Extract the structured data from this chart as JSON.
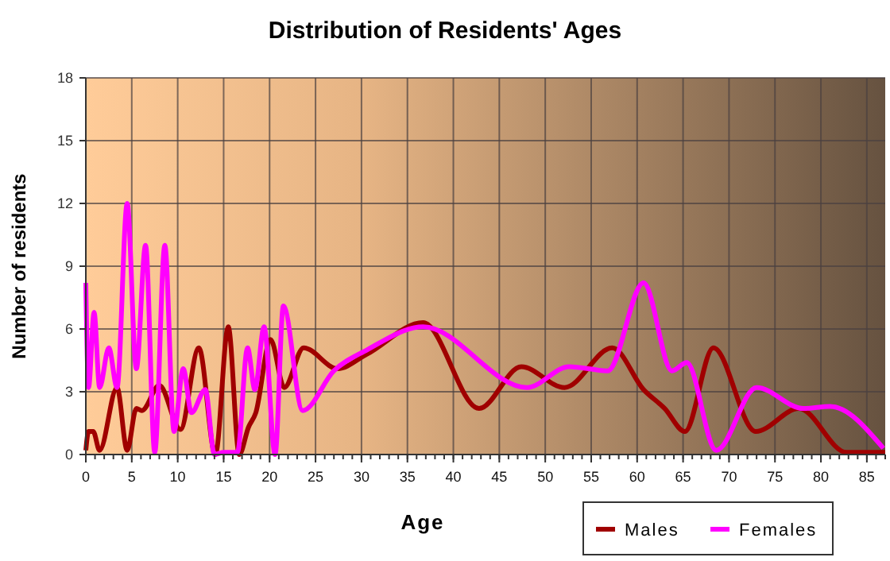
{
  "chart_data": {
    "type": "line",
    "title": "Distribution of Residents' Ages",
    "xlabel": "Age",
    "ylabel": "Number of residents",
    "xlim": [
      0,
      87
    ],
    "xticks": [
      0,
      5,
      10,
      15,
      20,
      25,
      30,
      35,
      40,
      45,
      50,
      55,
      60,
      65,
      70,
      75,
      80,
      85
    ],
    "ylim": [
      0,
      18
    ],
    "yticks": [
      0,
      3,
      6,
      9,
      12,
      15,
      18
    ],
    "grid": true,
    "legend": "bottom right",
    "marker": "none",
    "line_style": "solid",
    "series": [
      {
        "name": "Males",
        "color": "#a00000",
        "x": [
          0,
          0.3,
          0.8,
          1.5,
          3.4,
          4.5,
          5.5,
          6.1,
          8,
          10.3,
          12.3,
          14.1,
          15.5,
          16.7,
          17.7,
          18.5,
          20.1,
          21.6,
          23.7,
          27.4,
          30.6,
          36.7,
          42.8,
          47.4,
          52.1,
          57.3,
          60.7,
          63,
          65.2,
          68.3,
          72.9,
          77.6,
          82.8,
          87
        ],
        "values": [
          0.2,
          1.1,
          1.1,
          0.2,
          3.2,
          0.2,
          2.2,
          2.1,
          3.3,
          1.2,
          5.1,
          0,
          6.1,
          0,
          1.3,
          2,
          5.5,
          3.2,
          5.1,
          4.1,
          4.8,
          6.3,
          2.2,
          4.2,
          3.2,
          5.1,
          3.1,
          2.2,
          1.1,
          5.1,
          1.1,
          2.2,
          0.1,
          0.1
        ]
      },
      {
        "name": "Females",
        "color": "#ff00ff",
        "x": [
          0,
          0.3,
          0.9,
          1.5,
          2.5,
          3.4,
          4.5,
          5.5,
          6.5,
          7.5,
          8.6,
          9.6,
          10.6,
          11.5,
          13,
          14,
          15,
          16.5,
          17.6,
          18.4,
          19.4,
          20.6,
          21.5,
          23.6,
          27,
          30.6,
          36.7,
          48,
          52.6,
          56.8,
          60.7,
          63.8,
          65.4,
          68.6,
          73,
          78.1,
          81,
          86.8
        ],
        "values": [
          8.2,
          3.2,
          6.8,
          3.2,
          5.1,
          3.2,
          12,
          4.1,
          10,
          0.1,
          10,
          1.1,
          4.1,
          2,
          3.1,
          0,
          0.1,
          0.1,
          5.1,
          3.1,
          6.1,
          0,
          7.1,
          2.1,
          4,
          5,
          6.1,
          3.2,
          4.2,
          4,
          8.2,
          4,
          4.4,
          0.2,
          3.2,
          2.2,
          2.3,
          0.3
        ]
      }
    ]
  }
}
